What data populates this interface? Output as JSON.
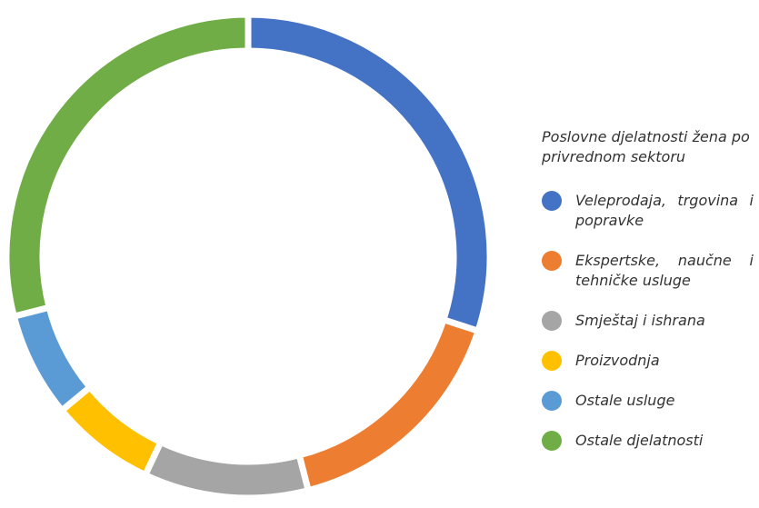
{
  "chart_data": {
    "type": "donut",
    "title": "Poslovne djelatnosti žena po privrednom sektoru",
    "categories": [
      "Veleprodaja, trgovina i popravke",
      "Ekspertske, naučne i tehničke usluge",
      "Smještaj i ishrana",
      "Proizvodnja",
      "Ostale usluge",
      "Ostale djelatnosti"
    ],
    "values": [
      30,
      16,
      11,
      7,
      7,
      29
    ],
    "colors": [
      "#4472c4",
      "#ed7d31",
      "#a5a5a5",
      "#ffc000",
      "#5b9bd5",
      "#70ad47"
    ],
    "legend": "right"
  }
}
